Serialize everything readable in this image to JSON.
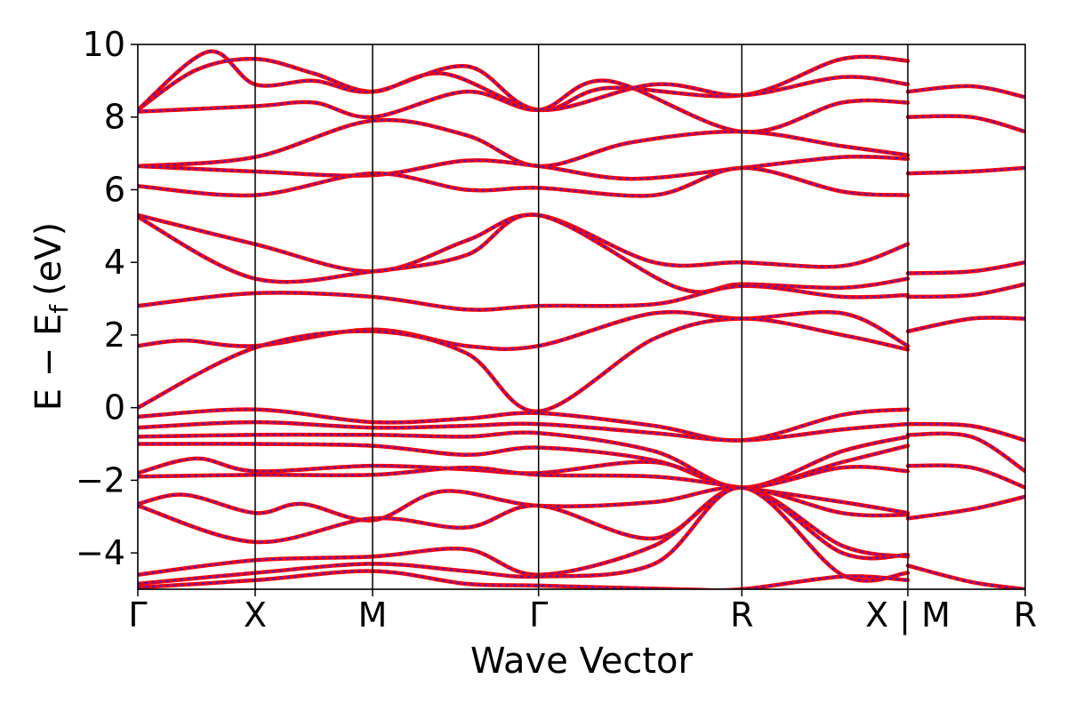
{
  "chart_data": {
    "type": "line",
    "xlabel": "Wave Vector",
    "ylabel": "E − E",
    "ylabel_sub": "f",
    "ylabel_unit": "(eV)",
    "ylim": [
      -5,
      10
    ],
    "yticks": [
      -4,
      -2,
      0,
      2,
      4,
      6,
      8,
      10
    ],
    "ytick_labels": [
      "−4",
      "−2",
      "0",
      "2",
      "4",
      "6",
      "8",
      "10"
    ],
    "kpath": [
      {
        "label": "Γ",
        "k": 0.0
      },
      {
        "label": "X",
        "k": 0.5
      },
      {
        "label": "M",
        "k": 1.0
      },
      {
        "label": "Γ",
        "k": 1.707
      },
      {
        "label": "R",
        "k": 2.573
      },
      {
        "label": "X | M",
        "k": 3.28
      },
      {
        "label": "R",
        "k": 3.78
      }
    ],
    "segment_breaks": [
      3.28
    ],
    "grid": false,
    "legend": "none",
    "line_colors": {
      "primary": "#ff0000",
      "overlay": "#2222ff"
    },
    "series": [
      {
        "values": [
          [
            0,
            8.2
          ],
          [
            0.25,
            9.3
          ],
          [
            0.5,
            9.6
          ],
          [
            0.75,
            9.2
          ],
          [
            1.0,
            8.7
          ],
          [
            1.3,
            9.2
          ],
          [
            1.707,
            8.2
          ],
          [
            2.0,
            8.8
          ],
          [
            2.573,
            8.6
          ],
          [
            3.0,
            9.6
          ],
          [
            3.28,
            9.55
          ],
          [
            3.28,
            8.7
          ],
          [
            3.55,
            8.85
          ],
          [
            3.78,
            8.55
          ]
        ]
      },
      {
        "values": [
          [
            0,
            8.2
          ],
          [
            0.3,
            9.8
          ],
          [
            0.5,
            8.9
          ],
          [
            0.75,
            9.0
          ],
          [
            1.0,
            8.7
          ],
          [
            1.4,
            9.4
          ],
          [
            1.707,
            8.2
          ],
          [
            2.2,
            8.9
          ],
          [
            2.573,
            8.6
          ],
          [
            3.0,
            9.1
          ],
          [
            3.28,
            8.9
          ]
        ]
      },
      {
        "values": [
          [
            0,
            8.15
          ],
          [
            0.5,
            8.3
          ],
          [
            0.75,
            8.4
          ],
          [
            1.0,
            8.0
          ],
          [
            1.4,
            8.7
          ],
          [
            1.707,
            8.2
          ],
          [
            2.0,
            9.0
          ],
          [
            2.573,
            7.6
          ],
          [
            3.0,
            8.4
          ],
          [
            3.28,
            8.4
          ],
          [
            3.28,
            8.0
          ],
          [
            3.55,
            8.0
          ],
          [
            3.78,
            7.6
          ]
        ]
      },
      {
        "values": [
          [
            0,
            6.65
          ],
          [
            0.5,
            6.9
          ],
          [
            1.0,
            7.9
          ],
          [
            1.4,
            7.5
          ],
          [
            1.707,
            6.65
          ],
          [
            2.1,
            7.3
          ],
          [
            2.573,
            7.6
          ],
          [
            3.0,
            7.2
          ],
          [
            3.28,
            6.95
          ]
        ]
      },
      {
        "values": [
          [
            0,
            6.65
          ],
          [
            0.5,
            6.5
          ],
          [
            1.0,
            6.4
          ],
          [
            1.4,
            6.8
          ],
          [
            1.707,
            6.65
          ],
          [
            2.1,
            6.3
          ],
          [
            2.573,
            6.6
          ],
          [
            3.0,
            6.9
          ],
          [
            3.28,
            6.85
          ],
          [
            3.28,
            6.45
          ],
          [
            3.55,
            6.5
          ],
          [
            3.78,
            6.6
          ]
        ]
      },
      {
        "values": [
          [
            0,
            6.1
          ],
          [
            0.5,
            5.85
          ],
          [
            1.0,
            6.45
          ],
          [
            1.4,
            6.0
          ],
          [
            1.707,
            6.05
          ],
          [
            2.2,
            5.85
          ],
          [
            2.573,
            6.6
          ],
          [
            3.0,
            5.95
          ],
          [
            3.28,
            5.85
          ]
        ]
      },
      {
        "values": [
          [
            0,
            5.3
          ],
          [
            0.5,
            4.5
          ],
          [
            1.0,
            3.75
          ],
          [
            1.4,
            4.6
          ],
          [
            1.707,
            5.3
          ],
          [
            2.2,
            4.0
          ],
          [
            2.573,
            4.0
          ],
          [
            3.0,
            3.9
          ],
          [
            3.28,
            4.5
          ],
          [
            3.28,
            3.7
          ],
          [
            3.55,
            3.75
          ],
          [
            3.78,
            4.0
          ]
        ]
      },
      {
        "values": [
          [
            0,
            5.25
          ],
          [
            0.5,
            3.55
          ],
          [
            1.0,
            3.75
          ],
          [
            1.4,
            4.2
          ],
          [
            1.707,
            5.3
          ],
          [
            2.3,
            3.3
          ],
          [
            2.573,
            3.4
          ],
          [
            3.0,
            3.3
          ],
          [
            3.28,
            3.55
          ],
          [
            3.28,
            3.05
          ],
          [
            3.55,
            3.1
          ],
          [
            3.78,
            3.4
          ]
        ]
      },
      {
        "values": [
          [
            0,
            2.8
          ],
          [
            0.5,
            3.15
          ],
          [
            1.0,
            3.05
          ],
          [
            1.4,
            2.7
          ],
          [
            1.707,
            2.8
          ],
          [
            2.2,
            2.85
          ],
          [
            2.573,
            3.35
          ],
          [
            3.0,
            3.05
          ],
          [
            3.28,
            3.1
          ]
        ]
      },
      {
        "values": [
          [
            0,
            1.7
          ],
          [
            0.2,
            1.85
          ],
          [
            0.5,
            1.7
          ],
          [
            1.0,
            2.15
          ],
          [
            1.4,
            1.7
          ],
          [
            1.707,
            1.7
          ],
          [
            2.2,
            2.6
          ],
          [
            2.573,
            2.45
          ],
          [
            3.0,
            2.6
          ],
          [
            3.28,
            1.7
          ],
          [
            3.28,
            2.1
          ],
          [
            3.55,
            2.45
          ],
          [
            3.78,
            2.45
          ]
        ]
      },
      {
        "values": [
          [
            0,
            0.0
          ],
          [
            0.5,
            1.65
          ],
          [
            1.0,
            2.1
          ],
          [
            1.4,
            1.5
          ],
          [
            1.707,
            -0.1
          ],
          [
            2.2,
            1.9
          ],
          [
            2.573,
            2.45
          ],
          [
            3.0,
            2.0
          ],
          [
            3.28,
            1.6
          ]
        ]
      },
      {
        "values": [
          [
            0,
            -0.25
          ],
          [
            0.5,
            -0.05
          ],
          [
            1.0,
            -0.4
          ],
          [
            1.4,
            -0.3
          ],
          [
            1.707,
            -0.15
          ],
          [
            2.2,
            -0.5
          ],
          [
            2.573,
            -0.9
          ],
          [
            3.0,
            -0.2
          ],
          [
            3.28,
            -0.05
          ],
          [
            3.28,
            -0.45
          ],
          [
            3.55,
            -0.5
          ],
          [
            3.78,
            -0.9
          ]
        ]
      },
      {
        "values": [
          [
            0,
            -0.55
          ],
          [
            0.5,
            -0.4
          ],
          [
            1.0,
            -0.55
          ],
          [
            1.4,
            -0.5
          ],
          [
            1.707,
            -0.45
          ],
          [
            2.2,
            -0.7
          ],
          [
            2.573,
            -0.9
          ],
          [
            3.0,
            -0.6
          ],
          [
            3.28,
            -0.45
          ]
        ]
      },
      {
        "values": [
          [
            0,
            -0.8
          ],
          [
            0.5,
            -0.75
          ],
          [
            1.0,
            -0.75
          ],
          [
            1.4,
            -0.8
          ],
          [
            1.707,
            -0.7
          ],
          [
            2.2,
            -1.2
          ],
          [
            2.573,
            -2.2
          ],
          [
            3.0,
            -1.2
          ],
          [
            3.28,
            -0.8
          ],
          [
            3.28,
            -0.75
          ],
          [
            3.55,
            -0.8
          ],
          [
            3.78,
            -1.75
          ]
        ]
      },
      {
        "values": [
          [
            0,
            -1.0
          ],
          [
            0.5,
            -1.0
          ],
          [
            1.0,
            -1.05
          ],
          [
            1.4,
            -1.3
          ],
          [
            1.707,
            -1.1
          ],
          [
            2.2,
            -1.45
          ],
          [
            2.573,
            -2.2
          ],
          [
            3.0,
            -1.5
          ],
          [
            3.28,
            -1.05
          ]
        ]
      },
      {
        "values": [
          [
            0,
            -1.8
          ],
          [
            0.25,
            -1.4
          ],
          [
            0.5,
            -1.75
          ],
          [
            1.0,
            -1.6
          ],
          [
            1.4,
            -1.7
          ],
          [
            1.707,
            -1.8
          ],
          [
            2.2,
            -1.5
          ],
          [
            2.573,
            -2.2
          ],
          [
            3.0,
            -1.65
          ],
          [
            3.28,
            -1.75
          ],
          [
            3.28,
            -1.6
          ],
          [
            3.55,
            -1.65
          ],
          [
            3.78,
            -2.2
          ]
        ]
      },
      {
        "values": [
          [
            0,
            -1.9
          ],
          [
            0.5,
            -1.85
          ],
          [
            1.0,
            -1.85
          ],
          [
            1.4,
            -1.65
          ],
          [
            1.707,
            -1.85
          ],
          [
            2.2,
            -1.9
          ],
          [
            2.573,
            -2.2
          ],
          [
            3.0,
            -2.6
          ],
          [
            3.28,
            -2.9
          ],
          [
            3.28,
            -3.05
          ],
          [
            3.55,
            -2.8
          ],
          [
            3.78,
            -2.45
          ]
        ]
      },
      {
        "values": [
          [
            0,
            -2.65
          ],
          [
            0.2,
            -2.4
          ],
          [
            0.5,
            -2.9
          ],
          [
            0.7,
            -2.65
          ],
          [
            1.0,
            -3.1
          ],
          [
            1.3,
            -2.3
          ],
          [
            1.707,
            -2.7
          ],
          [
            2.2,
            -2.6
          ],
          [
            2.573,
            -2.2
          ],
          [
            3.0,
            -2.9
          ],
          [
            3.28,
            -2.95
          ]
        ]
      },
      {
        "values": [
          [
            0,
            -2.7
          ],
          [
            0.5,
            -3.7
          ],
          [
            1.0,
            -3.05
          ],
          [
            1.4,
            -3.3
          ],
          [
            1.707,
            -2.7
          ],
          [
            2.2,
            -3.6
          ],
          [
            2.573,
            -2.2
          ],
          [
            3.0,
            -3.8
          ],
          [
            3.28,
            -4.1
          ]
        ]
      },
      {
        "values": [
          [
            0,
            -4.6
          ],
          [
            0.5,
            -4.2
          ],
          [
            1.0,
            -4.1
          ],
          [
            1.4,
            -3.9
          ],
          [
            1.707,
            -4.6
          ],
          [
            2.2,
            -3.8
          ],
          [
            2.573,
            -2.2
          ],
          [
            3.0,
            -4.0
          ],
          [
            3.28,
            -4.05
          ],
          [
            3.28,
            -4.35
          ],
          [
            3.55,
            -4.8
          ],
          [
            3.78,
            -5.0
          ]
        ]
      },
      {
        "values": [
          [
            0,
            -4.85
          ],
          [
            0.5,
            -4.55
          ],
          [
            1.0,
            -4.3
          ],
          [
            1.4,
            -4.5
          ],
          [
            1.707,
            -4.65
          ],
          [
            2.2,
            -4.3
          ],
          [
            2.573,
            -2.2
          ],
          [
            3.0,
            -4.6
          ],
          [
            3.28,
            -4.55
          ]
        ]
      },
      {
        "values": [
          [
            0,
            -4.95
          ],
          [
            0.5,
            -4.75
          ],
          [
            1.0,
            -4.5
          ],
          [
            1.4,
            -4.85
          ],
          [
            1.707,
            -4.9
          ],
          [
            2.3,
            -5.0
          ],
          [
            2.573,
            -5.0
          ],
          [
            3.0,
            -4.65
          ],
          [
            3.28,
            -4.75
          ]
        ]
      }
    ]
  }
}
